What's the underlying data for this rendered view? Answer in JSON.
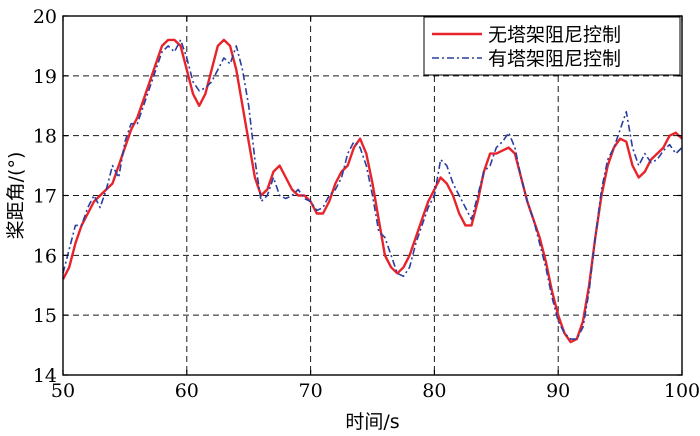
{
  "chart_data": {
    "type": "line",
    "title": "",
    "xlabel": "时间/s",
    "ylabel": "桨距角/(°)",
    "xlim": [
      50,
      100
    ],
    "ylim": [
      14,
      20
    ],
    "xticks": [
      50,
      60,
      70,
      80,
      90,
      100
    ],
    "yticks": [
      14,
      15,
      16,
      17,
      18,
      19,
      20
    ],
    "grid": true,
    "legend_position": "top-right",
    "series": [
      {
        "name": "无塔架阻尼控制",
        "color": "#e8242b",
        "style": "solid",
        "x": [
          50,
          50.5,
          51,
          51.5,
          52,
          52.5,
          53,
          53.5,
          54,
          54.5,
          55,
          55.5,
          56,
          56.5,
          57,
          57.5,
          58,
          58.5,
          59,
          59.5,
          60,
          60.5,
          61,
          61.5,
          62,
          62.5,
          63,
          63.5,
          64,
          64.5,
          65,
          65.5,
          66,
          66.5,
          67,
          67.5,
          68,
          68.5,
          69,
          69.5,
          70,
          70.5,
          71,
          71.5,
          72,
          72.5,
          73,
          73.5,
          74,
          74.5,
          75,
          75.5,
          76,
          76.5,
          77,
          77.5,
          78,
          78.5,
          79,
          79.5,
          80,
          80.5,
          81,
          81.5,
          82,
          82.5,
          83,
          83.5,
          84,
          84.5,
          85,
          85.5,
          86,
          86.5,
          87,
          87.5,
          88,
          88.5,
          89,
          89.5,
          90,
          90.5,
          91,
          91.5,
          92,
          92.5,
          93,
          93.5,
          94,
          94.5,
          95,
          95.5,
          96,
          96.5,
          97,
          97.5,
          98,
          98.5,
          99,
          99.5,
          100
        ],
        "values": [
          15.6,
          15.8,
          16.2,
          16.5,
          16.7,
          16.9,
          17.0,
          17.1,
          17.2,
          17.5,
          17.8,
          18.1,
          18.3,
          18.6,
          18.9,
          19.2,
          19.5,
          19.6,
          19.6,
          19.5,
          19.1,
          18.7,
          18.5,
          18.7,
          19.1,
          19.5,
          19.6,
          19.5,
          19.1,
          18.5,
          17.9,
          17.3,
          17.0,
          17.1,
          17.4,
          17.5,
          17.3,
          17.1,
          17.0,
          17.0,
          16.9,
          16.7,
          16.7,
          16.9,
          17.2,
          17.4,
          17.5,
          17.8,
          17.95,
          17.7,
          17.2,
          16.6,
          16.0,
          15.8,
          15.7,
          15.8,
          16.0,
          16.3,
          16.6,
          16.9,
          17.1,
          17.3,
          17.2,
          17.0,
          16.7,
          16.5,
          16.5,
          16.9,
          17.4,
          17.7,
          17.7,
          17.75,
          17.8,
          17.7,
          17.3,
          16.9,
          16.6,
          16.3,
          15.9,
          15.4,
          15.0,
          14.7,
          14.55,
          14.6,
          14.9,
          15.5,
          16.3,
          17.0,
          17.5,
          17.8,
          17.95,
          17.9,
          17.5,
          17.3,
          17.4,
          17.6,
          17.7,
          17.8,
          18.0,
          18.05,
          17.95
        ]
      },
      {
        "name": "有塔架阻尼控制",
        "color": "#2a3fa0",
        "style": "dashdot",
        "x": [
          50,
          50.5,
          51,
          51.5,
          52,
          52.5,
          53,
          53.5,
          54,
          54.5,
          55,
          55.5,
          56,
          56.5,
          57,
          57.5,
          58,
          58.5,
          59,
          59.5,
          60,
          60.5,
          61,
          61.5,
          62,
          62.5,
          63,
          63.5,
          64,
          64.5,
          65,
          65.5,
          66,
          66.5,
          67,
          67.5,
          68,
          68.5,
          69,
          69.5,
          70,
          70.5,
          71,
          71.5,
          72,
          72.5,
          73,
          73.5,
          74,
          74.5,
          75,
          75.5,
          76,
          76.5,
          77,
          77.5,
          78,
          78.5,
          79,
          79.5,
          80,
          80.5,
          81,
          81.5,
          82,
          82.5,
          83,
          83.5,
          84,
          84.5,
          85,
          85.5,
          86,
          86.5,
          87,
          87.5,
          88,
          88.5,
          89,
          89.5,
          90,
          90.5,
          91,
          91.5,
          92,
          92.5,
          93,
          93.5,
          94,
          94.5,
          95,
          95.5,
          96,
          96.5,
          97,
          97.5,
          98,
          98.5,
          99,
          99.5,
          100
        ],
        "values": [
          15.7,
          16.1,
          16.5,
          16.5,
          16.8,
          17.0,
          16.8,
          17.1,
          17.5,
          17.3,
          17.9,
          18.2,
          18.2,
          18.5,
          18.8,
          19.1,
          19.4,
          19.5,
          19.4,
          19.6,
          19.3,
          18.9,
          18.75,
          18.8,
          18.9,
          19.1,
          19.3,
          19.2,
          19.5,
          19.1,
          18.5,
          17.6,
          16.9,
          17.0,
          17.3,
          17.0,
          16.95,
          17.0,
          17.1,
          16.95,
          16.9,
          16.75,
          16.8,
          17.0,
          17.1,
          17.3,
          17.7,
          17.9,
          17.8,
          17.5,
          17.0,
          16.4,
          16.3,
          16.0,
          15.7,
          15.65,
          15.8,
          16.2,
          16.5,
          16.8,
          17.0,
          17.6,
          17.5,
          17.2,
          17.0,
          16.8,
          16.6,
          17.0,
          17.4,
          17.5,
          17.8,
          17.9,
          18.05,
          17.8,
          17.3,
          16.9,
          16.6,
          16.2,
          15.8,
          15.3,
          14.9,
          14.7,
          14.6,
          14.6,
          14.8,
          15.4,
          16.3,
          17.1,
          17.6,
          17.8,
          18.1,
          18.4,
          17.8,
          17.5,
          17.7,
          17.55,
          17.6,
          17.75,
          17.85,
          17.7,
          17.8
        ]
      }
    ]
  }
}
